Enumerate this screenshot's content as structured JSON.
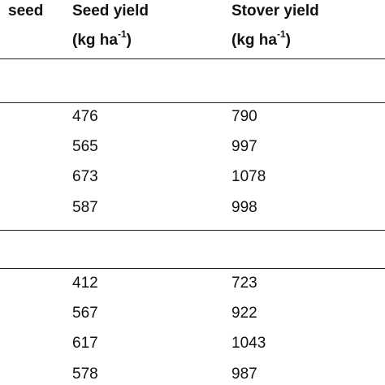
{
  "header": {
    "col1_line1": "seed",
    "col2_line1": "Seed yield",
    "col2_unit_base": "(kg ha",
    "col2_unit_sup": "-1",
    "col2_unit_close": ")",
    "col3_line1": "Stover yield",
    "col3_unit_base": "(kg ha",
    "col3_unit_sup": "-1",
    "col3_unit_close": ")"
  },
  "group1": {
    "rows": [
      {
        "seed_yield": "476",
        "stover_yield": "790"
      },
      {
        "seed_yield": "565",
        "stover_yield": "997"
      },
      {
        "seed_yield": "673",
        "stover_yield": "1078"
      },
      {
        "seed_yield": "587",
        "stover_yield": "998"
      }
    ]
  },
  "group2": {
    "rows": [
      {
        "seed_yield": "412",
        "stover_yield": "723"
      },
      {
        "seed_yield": "567",
        "stover_yield": "922"
      },
      {
        "seed_yield": "617",
        "stover_yield": "1043"
      },
      {
        "seed_yield": "578",
        "stover_yield": "987"
      }
    ]
  }
}
